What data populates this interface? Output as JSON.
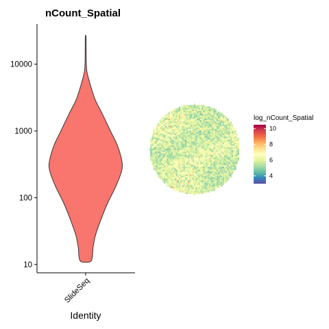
{
  "chart_data": [
    {
      "type": "violin",
      "title": "nCount_Spatial",
      "xlabel": "Identity",
      "ylabel": "",
      "y_scale": "log10",
      "ylim": [
        7.5,
        40000
      ],
      "y_ticks": [
        10,
        100,
        1000,
        10000
      ],
      "y_tick_labels": [
        "10",
        "100",
        "1000",
        "10000"
      ],
      "categories": [
        "SlideSeq"
      ],
      "fill_color": "#F8766D",
      "violin_profile": [
        {
          "y": 11,
          "w": 0.12
        },
        {
          "y": 13,
          "w": 0.18
        },
        {
          "y": 18,
          "w": 0.2
        },
        {
          "y": 28,
          "w": 0.27
        },
        {
          "y": 45,
          "w": 0.4
        },
        {
          "y": 80,
          "w": 0.58
        },
        {
          "y": 150,
          "w": 0.82
        },
        {
          "y": 250,
          "w": 0.97
        },
        {
          "y": 350,
          "w": 0.98
        },
        {
          "y": 600,
          "w": 0.86
        },
        {
          "y": 1000,
          "w": 0.67
        },
        {
          "y": 1800,
          "w": 0.45
        },
        {
          "y": 3000,
          "w": 0.25
        },
        {
          "y": 5500,
          "w": 0.1
        },
        {
          "y": 8000,
          "w": 0.03
        },
        {
          "y": 12000,
          "w": 0.015
        },
        {
          "y": 25000,
          "w": 0.01
        }
      ]
    },
    {
      "type": "spatial_feature",
      "feature": "log_nCount_Spatial",
      "legend_title": "log_nCount_Spatial",
      "legend_ticks": [
        4,
        6,
        8,
        10
      ],
      "legend_range": [
        3,
        10.5
      ],
      "colormap": "Spectral (reversed)",
      "colormap_stops": [
        "#5E4FA2",
        "#3288BD",
        "#66C2A5",
        "#ABDDA4",
        "#E6F598",
        "#FFFFBF",
        "#FEE08B",
        "#FDAE61",
        "#F46D43",
        "#D53E4F",
        "#9E0142"
      ],
      "typical_range": [
        4,
        7.5
      ]
    }
  ]
}
